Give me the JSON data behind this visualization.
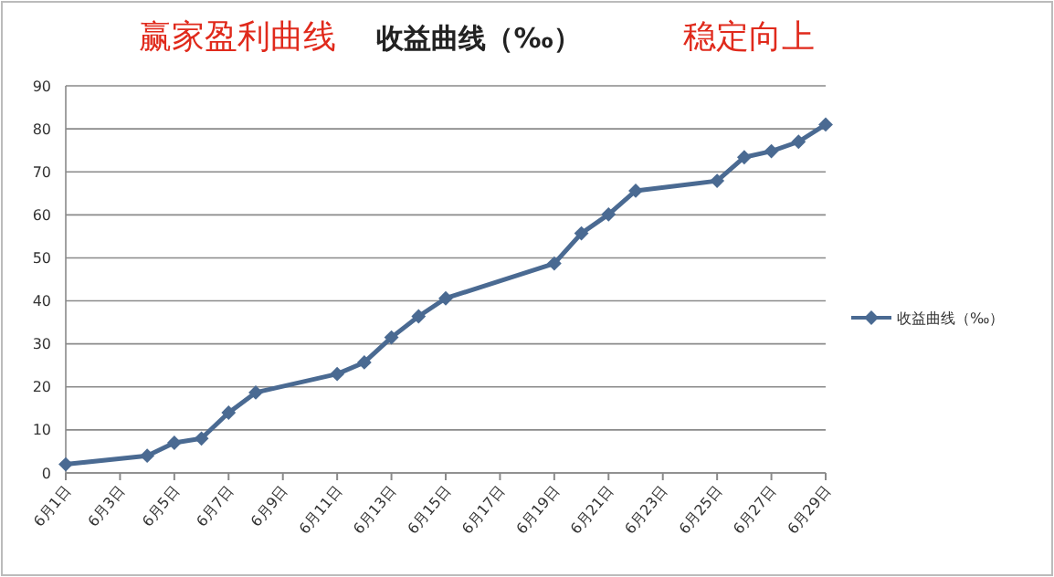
{
  "chart_data": {
    "type": "line",
    "title": "收益曲线（‰）",
    "annotations": [
      "赢家盈利曲线",
      "稳定向上"
    ],
    "x": [
      "--06-01",
      "--06-04",
      "--06-05",
      "--06-06",
      "--06-07",
      "--06-08",
      "--06-11",
      "--06-12",
      "--06-13",
      "--06-14",
      "--06-15",
      "--06-19",
      "--06-20",
      "--06-21",
      "--06-22",
      "--06-25",
      "--06-26",
      "--06-27",
      "--06-28",
      "--06-29"
    ],
    "series": [
      {
        "name": "收益曲线（‰）",
        "color": "#4a6a92",
        "values": [
          2,
          4,
          7,
          8,
          14,
          18.7,
          23,
          25.7,
          31.5,
          36.4,
          40.6,
          48.7,
          55.7,
          60.1,
          65.6,
          67.9,
          73.4,
          74.8,
          77,
          81
        ]
      }
    ],
    "xlim": [
      "--06-01",
      "--06-29"
    ],
    "xticks": [
      {
        "value": "--06-01",
        "label": "6月1日"
      },
      {
        "value": "--06-03",
        "label": "6月3日"
      },
      {
        "value": "--06-05",
        "label": "6月5日"
      },
      {
        "value": "--06-07",
        "label": "6月7日"
      },
      {
        "value": "--06-09",
        "label": "6月9日"
      },
      {
        "value": "--06-11",
        "label": "6月11日"
      },
      {
        "value": "--06-13",
        "label": "6月13日"
      },
      {
        "value": "--06-15",
        "label": "6月15日"
      },
      {
        "value": "--06-17",
        "label": "6月17日"
      },
      {
        "value": "--06-19",
        "label": "6月19日"
      },
      {
        "value": "--06-21",
        "label": "6月21日"
      },
      {
        "value": "--06-23",
        "label": "6月23日"
      },
      {
        "value": "--06-25",
        "label": "6月25日"
      },
      {
        "value": "--06-27",
        "label": "6月27日"
      },
      {
        "value": "--06-29",
        "label": "6月29日"
      }
    ],
    "ylim": [
      0,
      90
    ],
    "yticks": [
      0,
      10,
      20,
      30,
      40,
      50,
      60,
      70,
      80,
      90
    ],
    "grid": "y",
    "legend": "right",
    "marker": "diamond",
    "line_style": "solid"
  }
}
